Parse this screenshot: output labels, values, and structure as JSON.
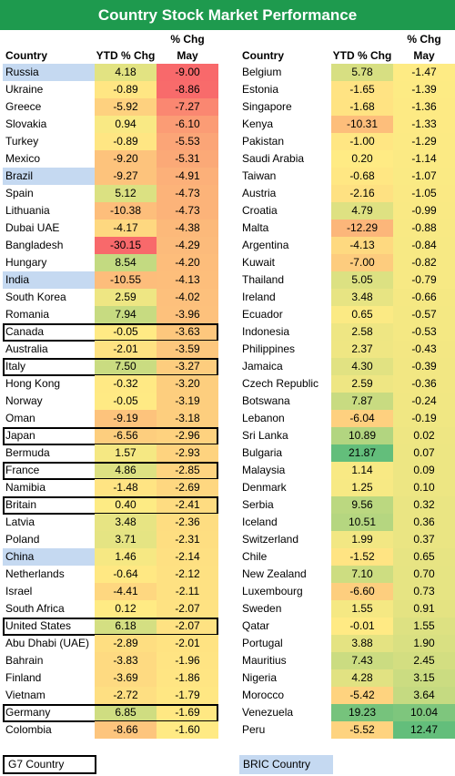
{
  "title": "Country Stock Market Performance",
  "headers": {
    "country": "Country",
    "ytd": "YTD % Chg",
    "may_top": "% Chg",
    "may_bottom": "May"
  },
  "colors": {
    "title_bg": "#1e9a4e",
    "bric_bg": "#c5d9f1",
    "scale_low": "#f8696b",
    "scale_mid": "#ffeb84",
    "scale_high": "#63be7b"
  },
  "legend": {
    "g7": "G7 Country",
    "bric": "BRIC Country"
  },
  "chart_data": {
    "type": "table",
    "columns": [
      "Country",
      "YTD % Chg",
      "% Chg May"
    ],
    "left": [
      {
        "country": "Russia",
        "ytd": "4.18",
        "may": "-9.00",
        "group": "bric"
      },
      {
        "country": "Ukraine",
        "ytd": "-0.89",
        "may": "-8.86",
        "group": ""
      },
      {
        "country": "Greece",
        "ytd": "-5.92",
        "may": "-7.27",
        "group": ""
      },
      {
        "country": "Slovakia",
        "ytd": "0.94",
        "may": "-6.10",
        "group": ""
      },
      {
        "country": "Turkey",
        "ytd": "-0.89",
        "may": "-5.53",
        "group": ""
      },
      {
        "country": "Mexico",
        "ytd": "-9.20",
        "may": "-5.31",
        "group": ""
      },
      {
        "country": "Brazil",
        "ytd": "-9.27",
        "may": "-4.91",
        "group": "bric"
      },
      {
        "country": "Spain",
        "ytd": "5.12",
        "may": "-4.73",
        "group": ""
      },
      {
        "country": "Lithuania",
        "ytd": "-10.38",
        "may": "-4.73",
        "group": ""
      },
      {
        "country": "Dubai UAE",
        "ytd": "-4.17",
        "may": "-4.38",
        "group": ""
      },
      {
        "country": "Bangladesh",
        "ytd": "-30.15",
        "may": "-4.29",
        "group": ""
      },
      {
        "country": "Hungary",
        "ytd": "8.54",
        "may": "-4.20",
        "group": ""
      },
      {
        "country": "India",
        "ytd": "-10.55",
        "may": "-4.13",
        "group": "bric"
      },
      {
        "country": "South Korea",
        "ytd": "2.59",
        "may": "-4.02",
        "group": ""
      },
      {
        "country": "Romania",
        "ytd": "7.94",
        "may": "-3.96",
        "group": ""
      },
      {
        "country": "Canada",
        "ytd": "-0.05",
        "may": "-3.63",
        "group": "g7"
      },
      {
        "country": "Australia",
        "ytd": "-2.01",
        "may": "-3.59",
        "group": ""
      },
      {
        "country": "Italy",
        "ytd": "7.50",
        "may": "-3.27",
        "group": "g7"
      },
      {
        "country": "Hong Kong",
        "ytd": "-0.32",
        "may": "-3.20",
        "group": ""
      },
      {
        "country": "Norway",
        "ytd": "-0.05",
        "may": "-3.19",
        "group": ""
      },
      {
        "country": "Oman",
        "ytd": "-9.19",
        "may": "-3.18",
        "group": ""
      },
      {
        "country": "Japan",
        "ytd": "-6.56",
        "may": "-2.96",
        "group": "g7"
      },
      {
        "country": "Bermuda",
        "ytd": "1.57",
        "may": "-2.93",
        "group": ""
      },
      {
        "country": "France",
        "ytd": "4.86",
        "may": "-2.85",
        "group": "g7"
      },
      {
        "country": "Namibia",
        "ytd": "-1.48",
        "may": "-2.69",
        "group": ""
      },
      {
        "country": "Britain",
        "ytd": "0.40",
        "may": "-2.41",
        "group": "g7"
      },
      {
        "country": "Latvia",
        "ytd": "3.48",
        "may": "-2.36",
        "group": ""
      },
      {
        "country": "Poland",
        "ytd": "3.71",
        "may": "-2.31",
        "group": ""
      },
      {
        "country": "China",
        "ytd": "1.46",
        "may": "-2.14",
        "group": "bric"
      },
      {
        "country": "Netherlands",
        "ytd": "-0.64",
        "may": "-2.12",
        "group": ""
      },
      {
        "country": "Israel",
        "ytd": "-4.41",
        "may": "-2.11",
        "group": ""
      },
      {
        "country": "South Africa",
        "ytd": "0.12",
        "may": "-2.07",
        "group": ""
      },
      {
        "country": "United States",
        "ytd": "6.18",
        "may": "-2.07",
        "group": "g7"
      },
      {
        "country": "Abu Dhabi (UAE)",
        "ytd": "-2.89",
        "may": "-2.01",
        "group": ""
      },
      {
        "country": "Bahrain",
        "ytd": "-3.83",
        "may": "-1.96",
        "group": ""
      },
      {
        "country": "Finland",
        "ytd": "-3.69",
        "may": "-1.86",
        "group": ""
      },
      {
        "country": "Vietnam",
        "ytd": "-2.72",
        "may": "-1.79",
        "group": ""
      },
      {
        "country": "Germany",
        "ytd": "6.85",
        "may": "-1.69",
        "group": "g7"
      },
      {
        "country": "Colombia",
        "ytd": "-8.66",
        "may": "-1.60",
        "group": ""
      }
    ],
    "right": [
      {
        "country": "Belgium",
        "ytd": "5.78",
        "may": "-1.47",
        "group": ""
      },
      {
        "country": "Estonia",
        "ytd": "-1.65",
        "may": "-1.39",
        "group": ""
      },
      {
        "country": "Singapore",
        "ytd": "-1.68",
        "may": "-1.36",
        "group": ""
      },
      {
        "country": "Kenya",
        "ytd": "-10.31",
        "may": "-1.33",
        "group": ""
      },
      {
        "country": "Pakistan",
        "ytd": "-1.00",
        "may": "-1.29",
        "group": ""
      },
      {
        "country": "Saudi Arabia",
        "ytd": "0.20",
        "may": "-1.14",
        "group": ""
      },
      {
        "country": "Taiwan",
        "ytd": "-0.68",
        "may": "-1.07",
        "group": ""
      },
      {
        "country": "Austria",
        "ytd": "-2.16",
        "may": "-1.05",
        "group": ""
      },
      {
        "country": "Croatia",
        "ytd": "4.79",
        "may": "-0.99",
        "group": ""
      },
      {
        "country": "Malta",
        "ytd": "-12.29",
        "may": "-0.88",
        "group": ""
      },
      {
        "country": "Argentina",
        "ytd": "-4.13",
        "may": "-0.84",
        "group": ""
      },
      {
        "country": "Kuwait",
        "ytd": "-7.00",
        "may": "-0.82",
        "group": ""
      },
      {
        "country": "Thailand",
        "ytd": "5.05",
        "may": "-0.79",
        "group": ""
      },
      {
        "country": "Ireland",
        "ytd": "3.48",
        "may": "-0.66",
        "group": ""
      },
      {
        "country": "Ecuador",
        "ytd": "0.65",
        "may": "-0.57",
        "group": ""
      },
      {
        "country": "Indonesia",
        "ytd": "2.58",
        "may": "-0.53",
        "group": ""
      },
      {
        "country": "Philippines",
        "ytd": "2.37",
        "may": "-0.43",
        "group": ""
      },
      {
        "country": "Jamaica",
        "ytd": "4.30",
        "may": "-0.39",
        "group": ""
      },
      {
        "country": "Czech Republic",
        "ytd": "2.59",
        "may": "-0.36",
        "group": ""
      },
      {
        "country": "Botswana",
        "ytd": "7.87",
        "may": "-0.24",
        "group": ""
      },
      {
        "country": "Lebanon",
        "ytd": "-6.04",
        "may": "-0.19",
        "group": ""
      },
      {
        "country": "Sri Lanka",
        "ytd": "10.89",
        "may": "0.02",
        "group": ""
      },
      {
        "country": "Bulgaria",
        "ytd": "21.87",
        "may": "0.07",
        "group": ""
      },
      {
        "country": "Malaysia",
        "ytd": "1.14",
        "may": "0.09",
        "group": ""
      },
      {
        "country": "Denmark",
        "ytd": "1.25",
        "may": "0.10",
        "group": ""
      },
      {
        "country": "Serbia",
        "ytd": "9.56",
        "may": "0.32",
        "group": ""
      },
      {
        "country": "Iceland",
        "ytd": "10.51",
        "may": "0.36",
        "group": ""
      },
      {
        "country": "Switzerland",
        "ytd": "1.99",
        "may": "0.37",
        "group": ""
      },
      {
        "country": "Chile",
        "ytd": "-1.52",
        "may": "0.65",
        "group": ""
      },
      {
        "country": "New Zealand",
        "ytd": "7.10",
        "may": "0.70",
        "group": ""
      },
      {
        "country": "Luxembourg",
        "ytd": "-6.60",
        "may": "0.73",
        "group": ""
      },
      {
        "country": "Sweden",
        "ytd": "1.55",
        "may": "0.91",
        "group": ""
      },
      {
        "country": "Qatar",
        "ytd": "-0.01",
        "may": "1.55",
        "group": ""
      },
      {
        "country": "Portugal",
        "ytd": "3.88",
        "may": "1.90",
        "group": ""
      },
      {
        "country": "Mauritius",
        "ytd": "7.43",
        "may": "2.45",
        "group": ""
      },
      {
        "country": "Nigeria",
        "ytd": "4.28",
        "may": "3.15",
        "group": ""
      },
      {
        "country": "Morocco",
        "ytd": "-5.42",
        "may": "3.64",
        "group": ""
      },
      {
        "country": "Venezuela",
        "ytd": "19.23",
        "may": "10.04",
        "group": ""
      },
      {
        "country": "Peru",
        "ytd": "-5.52",
        "may": "12.47",
        "group": ""
      }
    ]
  }
}
